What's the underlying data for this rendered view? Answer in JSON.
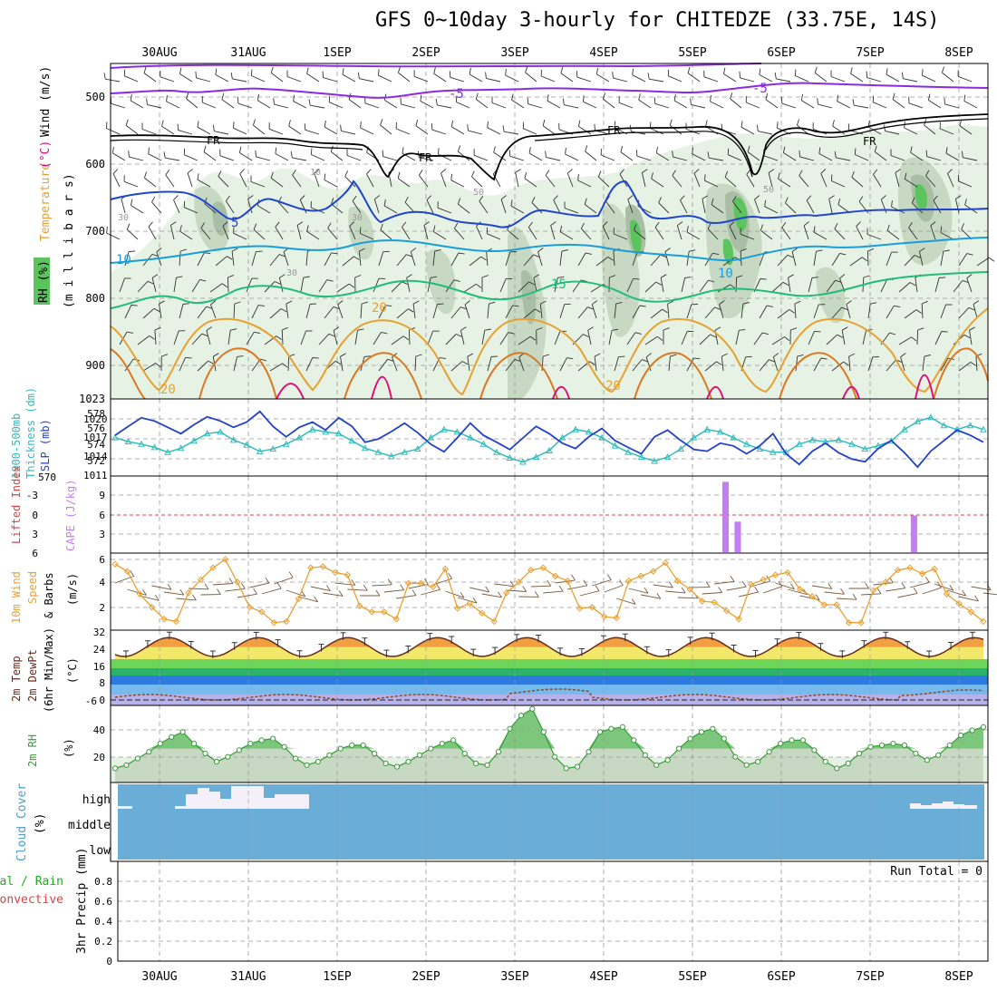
{
  "title": "GFS 0~10day 3-hourly for CHITEDZE (33.75E, 14S)",
  "colors": {
    "rh_light": "#e6f2e4",
    "rh_mid": "#c7d9c3",
    "rh_dark": "#a9bfa5",
    "rh_green": "#5cc45c",
    "temp_purple": "#8a2be2",
    "temp_blue": "#2244cc",
    "temp_cyan": "#1a9ed9",
    "temp_green": "#22bb77",
    "temp_orange": "#e8a030",
    "temp_dorange": "#dd7722",
    "temp_magenta": "#dd1177",
    "slp": "#2240c8",
    "thick": "#33bbbb",
    "cape": "#c27ef2",
    "wind": "#e8a030",
    "cloud": "#6aadd6",
    "cloud_white": "#f4f0fa",
    "rh2m": "#3a9a3a"
  },
  "dates": [
    "30AUG",
    "31AUG",
    "1SEP",
    "2SEP",
    "3SEP",
    "4SEP",
    "5SEP",
    "6SEP",
    "7SEP",
    "8SEP"
  ],
  "panels": {
    "upper": {
      "label_rh": "RH (%)",
      "label_temp": "Temperature",
      "label_tempu": "(°C)",
      "label_wind": "Wind (m/s)",
      "label_mb": "(m i l l i b a r s)",
      "levels": [
        "500",
        "600",
        "700",
        "800",
        "900",
        "1023"
      ],
      "contour_labels": {
        "m5a": "-5",
        "m5b": "-5",
        "fr1": "FR",
        "fr2": "FR",
        "fr3": "FR",
        "fr4": "FR",
        "p5": "5",
        "p10a": "10",
        "p10b": "10",
        "p15": "15",
        "p20a": "20",
        "p20b": "20",
        "p20c": "20",
        "r30a": "30",
        "r30b": "30",
        "r30c": "30",
        "r50a": "50",
        "r50b": "50",
        "r10": "10"
      }
    },
    "slp": {
      "label_a": "1000-500mb",
      "label_b": "Thickness (dm)",
      "label_c": "SLP (mb)",
      "left_ticks": [
        "578",
        "576",
        "574",
        "572",
        "570"
      ],
      "right_ticks": [
        "1020",
        "1017",
        "1014",
        "1011"
      ]
    },
    "cape": {
      "label_li": "Lifted Index",
      "label_cape": "CAPE (J/kg)",
      "left_ticks": [
        "-3",
        "0",
        "3",
        "6"
      ],
      "right_ticks": [
        "9",
        "6",
        "3"
      ]
    },
    "wind": {
      "label_a": "10m Wind",
      "label_b": "Speed",
      "label_c": "& Barbs",
      "label_d": "(m/s)",
      "ticks": [
        "6",
        "4",
        "2"
      ]
    },
    "temp": {
      "label_a": "2m Temp",
      "label_b": "2m DewPt",
      "label_c": "(6hr Min/Max)",
      "label_d": "(°C)",
      "ticks": [
        "32",
        "24",
        "16",
        "8",
        "0",
        "-6"
      ]
    },
    "rh2m": {
      "label_a": "2m RH",
      "label_b": "(%)",
      "ticks": [
        "40",
        "20"
      ]
    },
    "cloud": {
      "label_a": "Cloud Cover",
      "label_b": "(%)",
      "ticks": [
        "high",
        "middle",
        "low"
      ]
    },
    "precip": {
      "label_a": "Total / Rain",
      "label_b": "Convective",
      "label_c": "3hr Precip (mm)",
      "ticks": [
        "0.8",
        "0.6",
        "0.4",
        "0.2",
        "0"
      ],
      "run_total": "Run Total = 0"
    }
  },
  "chart_data": [
    {
      "type": "line",
      "name": "SLP",
      "ylim": [
        1011,
        1023
      ],
      "values": [
        1017.5,
        1019.2,
        1020.8,
        1020.2,
        1019.0,
        1017.8,
        1019.5,
        1021.0,
        1020.2,
        1019.0,
        1020.0,
        1022.0,
        1019.2,
        1017.2,
        1019.0,
        1020.0,
        1018.5,
        1020.8,
        1019.2,
        1016.2,
        1016.8,
        1018.2,
        1019.8,
        1018.0,
        1015.8,
        1014.4,
        1017.0,
        1019.8,
        1017.5,
        1016.2,
        1014.8,
        1017.0,
        1019.2,
        1017.8,
        1016.0,
        1015.0,
        1017.2,
        1018.8,
        1016.5,
        1015.2,
        1014.0,
        1017.2,
        1018.5,
        1016.5,
        1014.8,
        1014.5,
        1016.0,
        1015.5,
        1014.0,
        1015.5,
        1017.8,
        1014.0,
        1012.0,
        1014.5,
        1016.0,
        1014.2,
        1013.0,
        1012.5,
        1015.0,
        1016.5,
        1014.2,
        1011.5,
        1014.5,
        1016.5,
        1018.5,
        1017.5,
        1016.2
      ]
    },
    {
      "type": "line",
      "name": "Thickness",
      "ylim": [
        570,
        578.5
      ],
      "values": [
        574.4,
        573.9,
        573.6,
        573.2,
        572.6,
        573.1,
        574.0,
        574.9,
        575.1,
        574.1,
        573.5,
        572.7,
        573.0,
        573.6,
        574.4,
        575.4,
        575.1,
        574.9,
        574.0,
        573.1,
        572.6,
        572.1,
        572.6,
        573.0,
        574.4,
        575.4,
        575.1,
        574.4,
        573.6,
        572.6,
        571.9,
        571.4,
        572.0,
        572.8,
        574.4,
        575.4,
        575.1,
        574.4,
        573.4,
        572.6,
        572.0,
        571.5,
        572.0,
        573.0,
        574.4,
        575.4,
        575.1,
        574.4,
        573.6,
        573.0,
        572.6,
        572.6,
        573.6,
        574.1,
        573.9,
        574.1,
        573.6,
        573.0,
        573.4,
        574.0,
        575.4,
        576.4,
        576.9,
        575.9,
        575.4,
        575.9,
        575.4
      ]
    },
    {
      "type": "bar",
      "name": "CAPE",
      "ylim": [
        0,
        12
      ],
      "x_fraction": [
        0.703,
        0.717,
        0.92
      ],
      "values": [
        11.5,
        5.0,
        6.0
      ]
    },
    {
      "type": "line",
      "name": "10m Wind Speed",
      "ylim": [
        0.5,
        6.5
      ],
      "values": [
        5.8,
        5.2,
        3.3,
        2.2,
        1.2,
        1.0,
        3.4,
        4.5,
        5.5,
        6.2,
        4.3,
        2.2,
        1.8,
        0.9,
        1.0,
        2.9,
        5.5,
        5.6,
        5.1,
        4.9,
        2.3,
        1.8,
        1.8,
        1.2,
        4.2,
        4.2,
        3.9,
        5.4,
        2.1,
        2.5,
        1.7,
        1.0,
        3.4,
        4.3,
        5.3,
        5.5,
        4.8,
        4.4,
        2.1,
        2.2,
        1.4,
        1.3,
        4.4,
        4.8,
        5.2,
        5.9,
        4.4,
        3.7,
        2.7,
        2.6,
        1.9,
        1.2,
        4.1,
        4.5,
        4.9,
        5.1,
        3.7,
        3.1,
        2.4,
        2.4,
        0.9,
        0.9,
        3.6,
        4.3,
        5.3,
        5.5,
        5.0,
        5.4,
        3.3,
        2.5,
        1.8,
        1.0
      ]
    },
    {
      "type": "area",
      "name": "2m Temp",
      "ylim": [
        -6,
        32
      ],
      "min_max": [
        19,
        29
      ]
    },
    {
      "type": "area",
      "name": "2m RH",
      "ylim": [
        10,
        55
      ],
      "values": [
        18,
        20,
        24,
        28,
        33,
        37,
        40,
        33,
        27,
        22,
        25,
        29,
        33,
        35,
        36,
        31,
        24,
        20,
        22,
        26,
        30,
        32,
        32,
        27,
        21,
        19,
        22,
        26,
        30,
        33,
        35,
        27,
        21,
        20,
        28,
        42,
        50,
        54,
        40,
        25,
        18,
        19,
        28,
        40,
        42,
        43,
        35,
        26,
        20,
        23,
        30,
        36,
        40,
        42,
        36,
        25,
        20,
        22,
        28,
        33,
        35,
        35,
        29,
        22,
        18,
        21,
        27,
        31,
        32,
        33,
        32,
        27,
        23,
        26,
        32,
        38,
        41,
        43
      ]
    },
    {
      "type": "bar",
      "name": "Cloud Cover High",
      "ylim": [
        0,
        100
      ]
    },
    {
      "type": "bar",
      "name": "3hr Precip",
      "ylim": [
        0,
        1
      ]
    }
  ]
}
